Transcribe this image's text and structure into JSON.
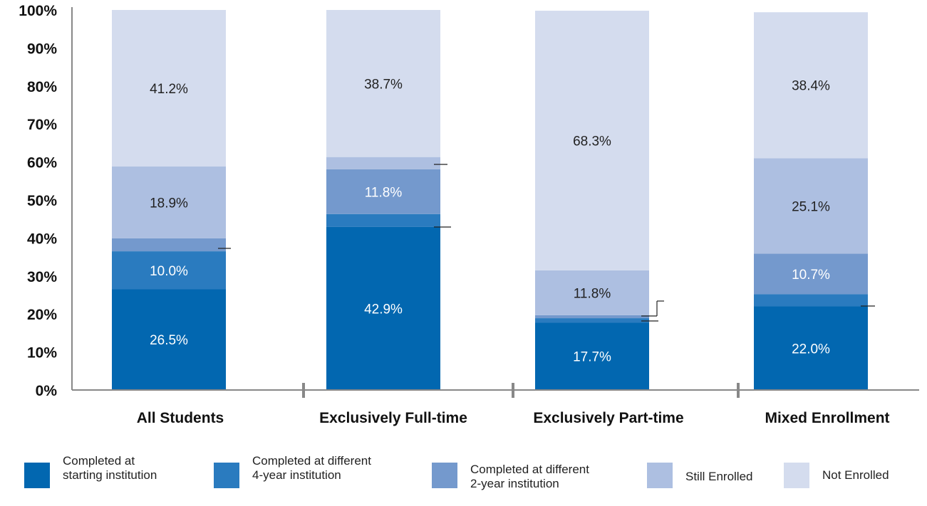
{
  "chart_data": {
    "type": "bar",
    "stacked": true,
    "categories": [
      "All Students",
      "Exclusively Full-time",
      "Exclusively Part-time",
      "Mixed Enrollment"
    ],
    "ylim": [
      0,
      100
    ],
    "yticks": [
      "0%",
      "10%",
      "20%",
      "30%",
      "40%",
      "50%",
      "60%",
      "70%",
      "80%",
      "90%",
      "100%"
    ],
    "series": [
      {
        "name": "Completed at starting institution",
        "color": "#0267b0",
        "values": [
          26.5,
          42.9,
          17.7,
          22.0
        ],
        "labels": [
          "26.5%",
          "42.9%",
          "17.7%",
          "22.0%"
        ]
      },
      {
        "name": "Completed at different 4-year institution",
        "color": "#2a7bbf",
        "values": [
          10.0,
          3.4,
          1.2,
          3.2
        ],
        "labels": [
          "10.0%",
          "",
          "",
          ""
        ]
      },
      {
        "name": "Completed at different 2-year institution",
        "color": "#7499cd",
        "values": [
          3.4,
          11.8,
          0.8,
          10.7
        ],
        "labels": [
          "",
          "11.8%",
          "",
          "10.7%"
        ]
      },
      {
        "name": "Still Enrolled",
        "color": "#adbfe1",
        "values": [
          18.9,
          3.2,
          11.8,
          25.1
        ],
        "labels": [
          "18.9%",
          "",
          "11.8%",
          "25.1%"
        ]
      },
      {
        "name": "Not Enrolled",
        "color": "#d4dcee",
        "values": [
          41.2,
          38.7,
          68.3,
          38.4
        ],
        "labels": [
          "41.2%",
          "38.7%",
          "68.3%",
          "38.4%"
        ]
      }
    ],
    "legend_position": "bottom",
    "grid": false
  },
  "legend": [
    {
      "label": "Completed at\nstarting institution",
      "color": "#0267b0"
    },
    {
      "label": "Completed at different\n4-year institution",
      "color": "#2a7bbf"
    },
    {
      "label": "Completed at different\n2-year institution",
      "color": "#7499cd"
    },
    {
      "label": "Still Enrolled",
      "color": "#adbfe1"
    },
    {
      "label": "Not Enrolled",
      "color": "#d4dcee"
    }
  ]
}
